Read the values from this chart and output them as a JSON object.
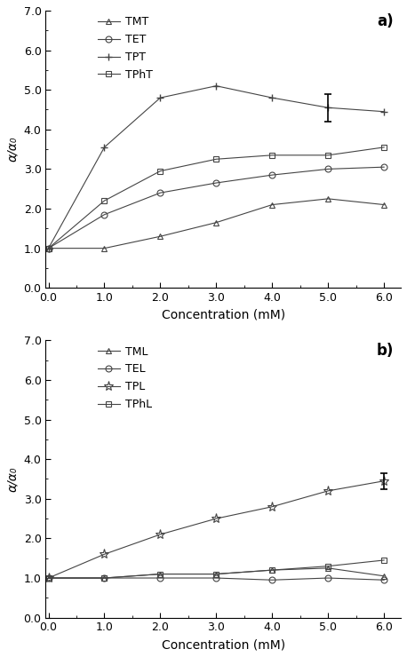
{
  "panel_a": {
    "x": [
      0.0,
      1.0,
      2.0,
      3.0,
      4.0,
      5.0,
      6.0
    ],
    "TMT": [
      1.0,
      1.0,
      1.3,
      1.65,
      2.1,
      2.25,
      2.1
    ],
    "TET": [
      1.0,
      1.85,
      2.4,
      2.65,
      2.85,
      3.0,
      3.05
    ],
    "TPT": [
      1.0,
      3.55,
      4.8,
      5.1,
      4.8,
      4.55,
      4.45
    ],
    "TPhT": [
      1.0,
      2.2,
      2.95,
      3.25,
      3.35,
      3.35,
      3.55
    ],
    "errorbar_x": 5.0,
    "errorbar_y": 4.55,
    "errorbar_yerr": 0.35,
    "ylabel": "α/α₀",
    "xlabel": "Concentration (mM)",
    "ylim": [
      0.0,
      7.0
    ],
    "xlim": [
      -0.05,
      6.3
    ],
    "yticks": [
      0.0,
      1.0,
      2.0,
      3.0,
      4.0,
      5.0,
      6.0,
      7.0
    ],
    "xticks": [
      0.0,
      1.0,
      2.0,
      3.0,
      4.0,
      5.0,
      6.0
    ],
    "panel_label": "a)"
  },
  "panel_b": {
    "x": [
      0.0,
      1.0,
      2.0,
      3.0,
      4.0,
      5.0,
      6.0
    ],
    "TML": [
      1.0,
      1.0,
      1.1,
      1.1,
      1.2,
      1.25,
      1.05
    ],
    "TEL": [
      1.0,
      1.0,
      1.0,
      1.0,
      0.95,
      1.0,
      0.95
    ],
    "TPL": [
      1.0,
      1.6,
      2.1,
      2.5,
      2.8,
      3.2,
      3.45
    ],
    "TPhL": [
      1.0,
      1.0,
      1.1,
      1.1,
      1.2,
      1.3,
      1.45
    ],
    "errorbar_x": 6.0,
    "errorbar_y": 3.45,
    "errorbar_yerr": 0.2,
    "ylabel": "α/α₀",
    "xlabel": "Concentration (mM)",
    "ylim": [
      0.0,
      7.0
    ],
    "xlim": [
      -0.05,
      6.3
    ],
    "yticks": [
      0.0,
      1.0,
      2.0,
      3.0,
      4.0,
      5.0,
      6.0,
      7.0
    ],
    "xticks": [
      0.0,
      1.0,
      2.0,
      3.0,
      4.0,
      5.0,
      6.0
    ],
    "panel_label": "b)"
  },
  "line_color": "#444444",
  "background_color": "#ffffff",
  "font_size": 10,
  "tick_fontsize": 9,
  "legend_fontsize": 9
}
